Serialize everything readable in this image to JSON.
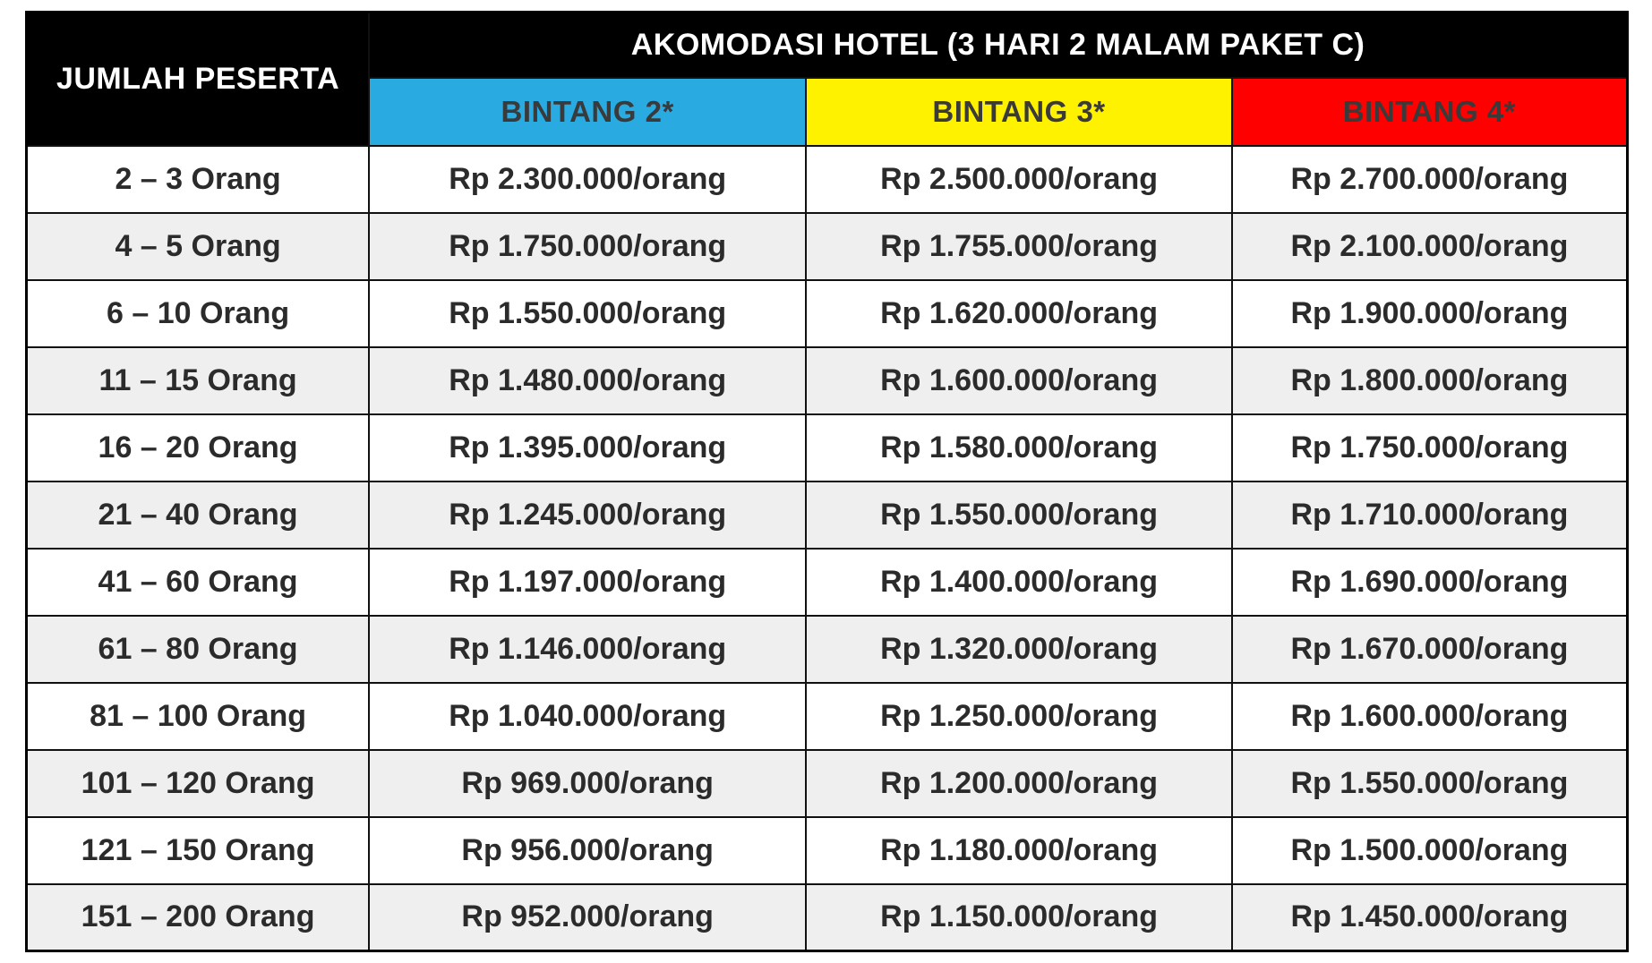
{
  "table": {
    "corner_header": "JUMLAH PESERTA",
    "title": "AKOMODASI HOTEL (3 HARI 2 MALAM PAKET C)",
    "columns": [
      {
        "label": "BINTANG 2*",
        "color": "#29abe2"
      },
      {
        "label": "BINTANG 3*",
        "color": "#fff200"
      },
      {
        "label": "BINTANG 4*",
        "color": "#ff0000"
      }
    ],
    "rows": [
      {
        "peserta": "2 – 3 Orang",
        "bintang2": "Rp 2.300.000/orang",
        "bintang3": "Rp 2.500.000/orang",
        "bintang4": "Rp 2.700.000/orang"
      },
      {
        "peserta": "4 – 5 Orang",
        "bintang2": "Rp 1.750.000/orang",
        "bintang3": "Rp 1.755.000/orang",
        "bintang4": "Rp 2.100.000/orang"
      },
      {
        "peserta": "6 – 10 Orang",
        "bintang2": "Rp 1.550.000/orang",
        "bintang3": "Rp 1.620.000/orang",
        "bintang4": "Rp 1.900.000/orang"
      },
      {
        "peserta": "11 – 15 Orang",
        "bintang2": "Rp 1.480.000/orang",
        "bintang3": "Rp 1.600.000/orang",
        "bintang4": "Rp 1.800.000/orang"
      },
      {
        "peserta": "16 – 20 Orang",
        "bintang2": "Rp 1.395.000/orang",
        "bintang3": "Rp 1.580.000/orang",
        "bintang4": "Rp 1.750.000/orang"
      },
      {
        "peserta": "21 – 40 Orang",
        "bintang2": "Rp 1.245.000/orang",
        "bintang3": "Rp 1.550.000/orang",
        "bintang4": "Rp 1.710.000/orang"
      },
      {
        "peserta": "41 – 60 Orang",
        "bintang2": "Rp 1.197.000/orang",
        "bintang3": "Rp 1.400.000/orang",
        "bintang4": "Rp 1.690.000/orang"
      },
      {
        "peserta": "61 – 80 Orang",
        "bintang2": "Rp 1.146.000/orang",
        "bintang3": "Rp 1.320.000/orang",
        "bintang4": "Rp 1.670.000/orang"
      },
      {
        "peserta": "81 – 100 Orang",
        "bintang2": "Rp 1.040.000/orang",
        "bintang3": "Rp 1.250.000/orang",
        "bintang4": "Rp 1.600.000/orang"
      },
      {
        "peserta": "101 – 120 Orang",
        "bintang2": "Rp 969.000/orang",
        "bintang3": "Rp 1.200.000/orang",
        "bintang4": "Rp 1.550.000/orang"
      },
      {
        "peserta": "121 – 150 Orang",
        "bintang2": "Rp 956.000/orang",
        "bintang3": "Rp 1.180.000/orang",
        "bintang4": "Rp 1.500.000/orang"
      },
      {
        "peserta": "151 – 200 Orang",
        "bintang2": "Rp 952.000/orang",
        "bintang3": "Rp 1.150.000/orang",
        "bintang4": "Rp 1.450.000/orang"
      }
    ]
  },
  "colors": {
    "header_bg": "#000000",
    "header_text": "#ffffff",
    "star2_bg": "#29abe2",
    "star3_bg": "#fff200",
    "star4_bg": "#ff0000",
    "star_text": "#3a3a3a",
    "row_alt_bg": "#efefef",
    "row_bg": "#ffffff",
    "cell_text": "#2b2b2b",
    "grid_line": "#111111"
  }
}
